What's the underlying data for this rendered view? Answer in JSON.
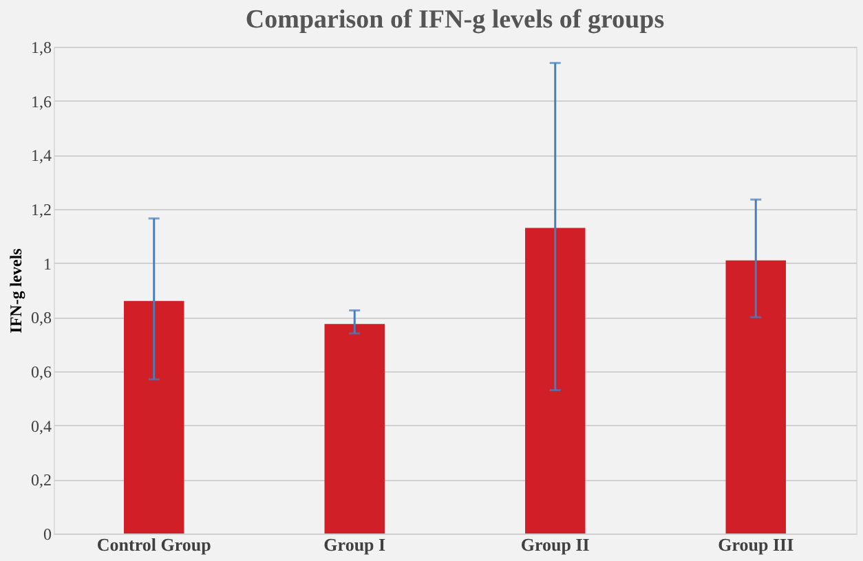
{
  "chart_data": {
    "type": "bar",
    "title": "Comparison of IFN-g levels of groups",
    "ylabel": "IFN-g levels",
    "categories": [
      "Control Group",
      "Group I",
      "Group II",
      "Group III"
    ],
    "values": [
      0.86,
      0.775,
      1.13,
      1.01
    ],
    "color": "#d01f27",
    "errors": [
      [
        0.57,
        1.165
      ],
      [
        0.74,
        0.825
      ],
      [
        0.53,
        1.74
      ],
      [
        0.8,
        1.235
      ]
    ],
    "ylim": [
      0,
      1.8
    ],
    "yticks": [
      {
        "value": 0,
        "label": "0"
      },
      {
        "value": 0.2,
        "label": "0,2"
      },
      {
        "value": 0.4,
        "label": "0,4"
      },
      {
        "value": 0.6,
        "label": "0,6"
      },
      {
        "value": 0.8,
        "label": "0,8"
      },
      {
        "value": 1,
        "label": "1"
      },
      {
        "value": 1.2,
        "label": "1,2"
      },
      {
        "value": 1.4,
        "label": "1,4"
      },
      {
        "value": 1.6,
        "label": "1,6"
      },
      {
        "value": 1.8,
        "label": "1,8"
      }
    ],
    "grid": "y"
  }
}
